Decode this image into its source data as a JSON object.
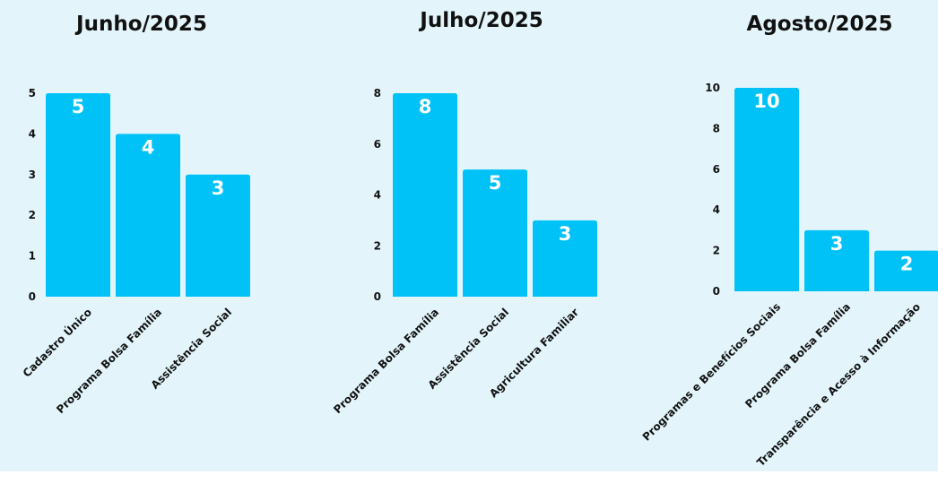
{
  "colors": {
    "background": "#e3f5fb",
    "bar": "#00c2f7",
    "text": "#111111",
    "value_label": "#ffffff"
  },
  "chart_data": [
    {
      "type": "bar",
      "title": "Junho/2025",
      "categories": [
        "Cadastro Único",
        "Programa Bolsa Família",
        "Assistência Social"
      ],
      "values": [
        5,
        4,
        3
      ],
      "yticks": [
        0,
        1,
        2,
        3,
        4,
        5
      ],
      "ylim": [
        0,
        5
      ],
      "xlabel": "",
      "ylabel": "",
      "grid": false,
      "data_labels": true
    },
    {
      "type": "bar",
      "title": "Julho/2025",
      "categories": [
        "Programa Bolsa Família",
        "Assistência Social",
        "Agricultura Familiar"
      ],
      "values": [
        8,
        5,
        3
      ],
      "yticks": [
        0,
        2,
        4,
        6,
        8
      ],
      "ylim": [
        0,
        8
      ],
      "xlabel": "",
      "ylabel": "",
      "grid": false,
      "data_labels": true
    },
    {
      "type": "bar",
      "title": "Agosto/2025",
      "categories": [
        "Programas e Benefícios Sociais",
        "Programa Bolsa Família",
        "Transparência e Acesso à Informação"
      ],
      "values": [
        10,
        3,
        2
      ],
      "yticks": [
        0,
        2,
        4,
        6,
        8,
        10
      ],
      "ylim": [
        0,
        10
      ],
      "xlabel": "",
      "ylabel": "",
      "grid": false,
      "data_labels": true
    }
  ]
}
